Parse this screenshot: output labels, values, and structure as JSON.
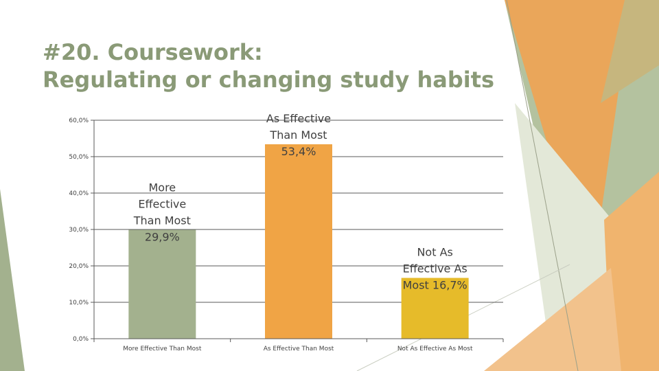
{
  "slide": {
    "title_line1": "#20. Coursework:",
    "title_line2": "Regulating or changing study habits",
    "colors": {
      "title": "#8a9a77",
      "accent_green": "#a3b18e",
      "accent_orange": "#f0a445",
      "accent_gold": "#e6bb2a"
    }
  },
  "chart_data": {
    "type": "bar",
    "title": "",
    "xlabel": "",
    "ylabel": "",
    "categories": [
      "More Effective Than Most",
      "As Effective Than Most",
      "Not As Effective As Most"
    ],
    "values": [
      29.9,
      53.4,
      16.7
    ],
    "data_labels": [
      [
        "More",
        "Effective",
        "Than Most",
        "29,9%"
      ],
      [
        "As Effective",
        "Than Most",
        "53,4%"
      ],
      [
        "Not As",
        "Effective As",
        "Most  16,7%"
      ]
    ],
    "colors": [
      "#a3b18e",
      "#f0a445",
      "#e6bb2a"
    ],
    "ylim": [
      0,
      60
    ],
    "yticks": [
      0,
      10,
      20,
      30,
      40,
      50,
      60
    ],
    "ytick_labels": [
      "0,0%",
      "10,0%",
      "20,0%",
      "30,0%",
      "40,0%",
      "50,0%",
      "60,0%"
    ],
    "grid": true,
    "legend": "none"
  }
}
